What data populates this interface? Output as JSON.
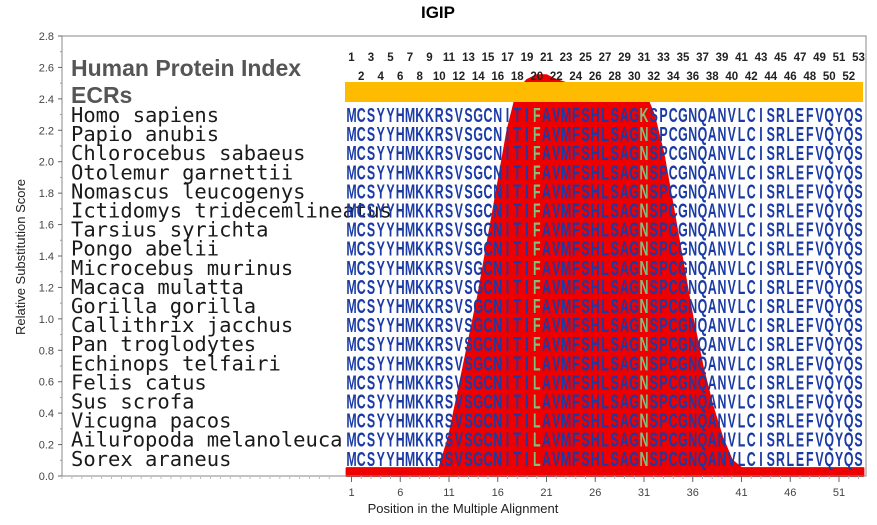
{
  "chart_data": {
    "type": "area",
    "title": "IGIP",
    "xlabel": "Position in the Multiple Alignment",
    "ylabel": "Relative Substitution Score",
    "xlim": [
      0.5,
      53.5
    ],
    "ylim": [
      0,
      2.8
    ],
    "yticks": [
      "0.0",
      "0.2",
      "0.4",
      "0.6",
      "0.8",
      "1.0",
      "1.2",
      "1.4",
      "1.6",
      "1.8",
      "2.0",
      "2.2",
      "2.4",
      "2.6",
      "2.8"
    ],
    "xticks": [
      1,
      6,
      11,
      16,
      21,
      26,
      31,
      36,
      41,
      46,
      51
    ],
    "grid": false,
    "series": [
      {
        "color": "#ee0000",
        "x": [
          0.5,
          10,
          11,
          12,
          13,
          14,
          15,
          16,
          17,
          18,
          19,
          20,
          21,
          22,
          23,
          24,
          25,
          26,
          27,
          28,
          29,
          30,
          31,
          32,
          33,
          34,
          35,
          36,
          37,
          38,
          39,
          40,
          41,
          53.5
        ],
        "values": [
          0.05,
          0.05,
          0.25,
          0.55,
          0.85,
          1.15,
          1.5,
          1.85,
          2.2,
          2.45,
          2.52,
          2.55,
          2.55,
          2.52,
          2.5,
          2.5,
          2.5,
          2.5,
          2.49,
          2.49,
          2.48,
          2.48,
          2.45,
          2.3,
          2.05,
          1.7,
          1.35,
          1.0,
          0.7,
          0.45,
          0.25,
          0.1,
          0.05,
          0.05
        ]
      }
    ]
  },
  "panel": {
    "title_line1": "Human Protein Index",
    "title_line2": "ECRs",
    "ecr_bar_color": "#ffbb00",
    "position_top": [
      "1",
      "3",
      "5",
      "7",
      "9",
      "11",
      "13",
      "15",
      "17",
      "19",
      "21",
      "23",
      "25",
      "27",
      "29",
      "31",
      "33",
      "35",
      "37",
      "39",
      "41",
      "43",
      "45",
      "47",
      "49",
      "51",
      "53"
    ],
    "position_bottom": [
      "2",
      "4",
      "6",
      "8",
      "10",
      "12",
      "14",
      "16",
      "18",
      "20",
      "22",
      "24",
      "26",
      "28",
      "30",
      "32",
      "34",
      "36",
      "38",
      "40",
      "42",
      "44",
      "46",
      "48",
      "50",
      "52"
    ]
  },
  "alignment": {
    "aa_color": "#1a3aa6",
    "highlight_color": "#7fbf7f",
    "rows": [
      {
        "species": "Homo sapiens",
        "sequence": "MCSYYHMKKRSVSGCNITIFAVMFSHLSAGKSPCGNQANVLCISRLEFVQYQS"
      },
      {
        "species": "Papio anubis",
        "sequence": "MCSYYHMKKRSVSGCNITIFAVMFSHLSAGNSPCGNQANVLCISRLEFVQYQS"
      },
      {
        "species": "Chlorocebus sabaeus",
        "sequence": "MCSYYHMKKRSVSGCNITIFAVMFSHLSAGNSPCGNQANVLCISRLEFVQYQS"
      },
      {
        "species": "Otolemur garnettii",
        "sequence": "MCSYYHMKKRSVSGCNITIFAVMFSHLSAGNSPCGNQANVLCISRLEFVQYQS"
      },
      {
        "species": "Nomascus leucogenys",
        "sequence": "MCSYYHMKKRSVSGCNITIFAVMFSHLSAGNSPCGNQANVLCISRLEFVQYQS"
      },
      {
        "species": "Ictidomys tridecemlineatus",
        "sequence": "MCSYYHMKKRSVSGCNITIFAVMFSHLSAGNSPCGNQANVLCISRLEFVQYQS"
      },
      {
        "species": "Tarsius syrichta",
        "sequence": "MCSYYHMKKRSVSGCNITIFAVMFSHLSAGNSPCGNQANVLCISRLEFVQYQS"
      },
      {
        "species": "Pongo abelii",
        "sequence": "MCSYYHMKKRSVSGCNITIFAVMFSHLSAGNSPCGNQANVLCISRLEFVQYQS"
      },
      {
        "species": "Microcebus murinus",
        "sequence": "MCSYYHMKKRSVSGCNITIFAVMFSHLSAGNSPCGNQANVLCISRLEFVQYQS"
      },
      {
        "species": "Macaca mulatta",
        "sequence": "MCSYYHMKKRSVSGCNITIFAVMFSHLSAGNSPCGNQANVLCISRLEFVQYQS"
      },
      {
        "species": "Gorilla gorilla",
        "sequence": "MCSYYHMKKRSVSGCNITIFAVMFSHLSAGNSPCGNQANVLCISRLEFVQYQS"
      },
      {
        "species": "Callithrix jacchus",
        "sequence": "MCSYYHMKKRSVSGCNITIFAVMFSHLSAGNSPCGNQANVLCISRLEFVQYQS"
      },
      {
        "species": "Pan troglodytes",
        "sequence": "MCSYYHMKKRSVSGCNITIFAVMFSHLSAGNSPCGNQANVLCISRLEFVQYQS"
      },
      {
        "species": "Echinops telfairi",
        "sequence": "MCSYYHMKKRSVSGCNITILAVMFSHLSAGNSPCGNQANVLCISRLEFVQYQS"
      },
      {
        "species": "Felis catus",
        "sequence": "MCSYYHMKKRSVSGCNITILAVMFSHLSAGNSPCGNQANVLCISRLEFVQYQS"
      },
      {
        "species": "Sus scrofa",
        "sequence": "MCSYYHMKKRSVSGCNITILAVMFSHLSAGNSPCGNQANVLCISRLEFVQYQS"
      },
      {
        "species": "Vicugna pacos",
        "sequence": "MCSYYHMKKRSVSGCNITILAVMFSHLSAGNSPCGNQANVLCISRLEFVQYQS"
      },
      {
        "species": "Ailuropoda melanoleuca",
        "sequence": "MCSYYHMKKRSVSGCNITILAVMFSHLSAGNSPCGNQANVLCISRLEFVQYQS"
      },
      {
        "species": "Sorex araneus",
        "sequence": "MCSYYHMKKRSVSGCNITILAVMFSHLSAGNSPCGNQANVLCISRLEFVQYQS"
      }
    ]
  }
}
